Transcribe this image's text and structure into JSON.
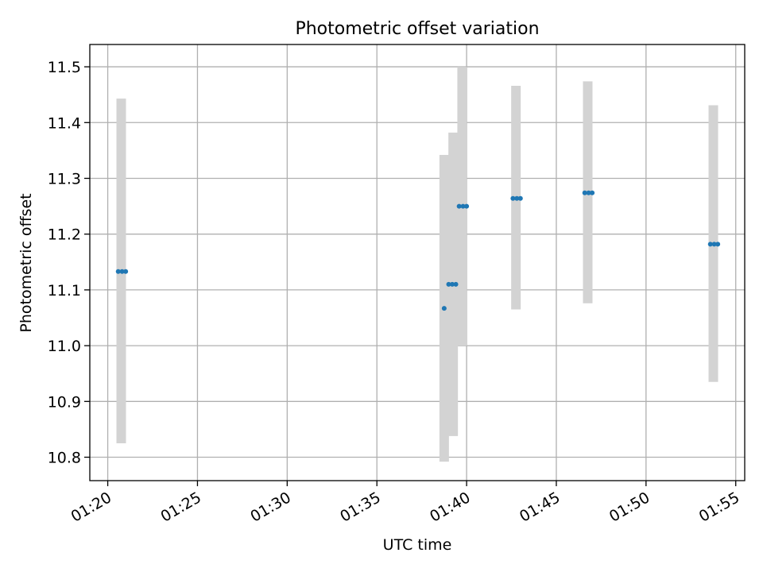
{
  "chart_data": {
    "type": "scatter",
    "title": "Photometric offset variation",
    "xlabel": "UTC time",
    "ylabel": "Photometric offset",
    "x_ticks": [
      "01:20",
      "01:25",
      "01:30",
      "01:35",
      "01:40",
      "01:45",
      "01:50",
      "01:55"
    ],
    "y_ticks": [
      "10.8",
      "10.9",
      "11.0",
      "11.1",
      "11.2",
      "11.3",
      "11.4",
      "11.5"
    ],
    "xlim": [
      "01:19:00",
      "01:55:30"
    ],
    "ylim": [
      10.758,
      11.54
    ],
    "grid": true,
    "colors": {
      "points": "#1f77b4",
      "error_bars": "#d3d3d3",
      "grid": "#b0b0b0"
    },
    "error_bars": [
      {
        "t": "01:20:45",
        "low": 10.825,
        "high": 11.443
      },
      {
        "t": "01:38:45",
        "low": 10.792,
        "high": 11.342
      },
      {
        "t": "01:39:15",
        "low": 10.838,
        "high": 11.382
      },
      {
        "t": "01:39:45",
        "low": 11.0,
        "high": 11.5
      },
      {
        "t": "01:42:45",
        "low": 11.065,
        "high": 11.466
      },
      {
        "t": "01:46:45",
        "low": 11.076,
        "high": 11.474
      },
      {
        "t": "01:53:45",
        "low": 10.935,
        "high": 11.431
      }
    ],
    "points": [
      {
        "t": "01:20:35",
        "y": 11.133
      },
      {
        "t": "01:20:48",
        "y": 11.133
      },
      {
        "t": "01:21:00",
        "y": 11.133
      },
      {
        "t": "01:38:45",
        "y": 11.067
      },
      {
        "t": "01:39:00",
        "y": 11.11
      },
      {
        "t": "01:39:12",
        "y": 11.11
      },
      {
        "t": "01:39:24",
        "y": 11.11
      },
      {
        "t": "01:39:35",
        "y": 11.25
      },
      {
        "t": "01:39:48",
        "y": 11.25
      },
      {
        "t": "01:40:00",
        "y": 11.25
      },
      {
        "t": "01:42:35",
        "y": 11.264
      },
      {
        "t": "01:42:48",
        "y": 11.264
      },
      {
        "t": "01:43:00",
        "y": 11.264
      },
      {
        "t": "01:46:35",
        "y": 11.274
      },
      {
        "t": "01:46:48",
        "y": 11.274
      },
      {
        "t": "01:47:00",
        "y": 11.274
      },
      {
        "t": "01:53:35",
        "y": 11.182
      },
      {
        "t": "01:53:48",
        "y": 11.182
      },
      {
        "t": "01:54:00",
        "y": 11.182
      }
    ]
  }
}
